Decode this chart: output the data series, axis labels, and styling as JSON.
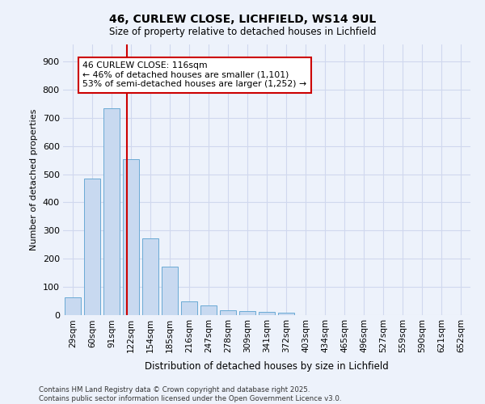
{
  "title_line1": "46, CURLEW CLOSE, LICHFIELD, WS14 9UL",
  "title_line2": "Size of property relative to detached houses in Lichfield",
  "xlabel": "Distribution of detached houses by size in Lichfield",
  "ylabel": "Number of detached properties",
  "categories": [
    "29sqm",
    "60sqm",
    "91sqm",
    "122sqm",
    "154sqm",
    "185sqm",
    "216sqm",
    "247sqm",
    "278sqm",
    "309sqm",
    "341sqm",
    "372sqm",
    "403sqm",
    "434sqm",
    "465sqm",
    "496sqm",
    "527sqm",
    "559sqm",
    "590sqm",
    "621sqm",
    "652sqm"
  ],
  "values": [
    62,
    483,
    733,
    553,
    272,
    173,
    48,
    33,
    18,
    13,
    11,
    8,
    0,
    0,
    0,
    0,
    0,
    0,
    0,
    0,
    0
  ],
  "bar_color": "#c8d9f0",
  "bar_edge_color": "#6aaad4",
  "annotation_title": "46 CURLEW CLOSE: 116sqm",
  "annotation_line2": "← 46% of detached houses are smaller (1,101)",
  "annotation_line3": "53% of semi-detached houses are larger (1,252) →",
  "vline_color": "#cc0000",
  "annotation_box_color": "#ffffff",
  "annotation_box_edge": "#cc0000",
  "ylim": [
    0,
    960
  ],
  "yticks": [
    0,
    100,
    200,
    300,
    400,
    500,
    600,
    700,
    800,
    900
  ],
  "bg_color": "#edf2fb",
  "grid_color": "#d0d8ee",
  "footer_line1": "Contains HM Land Registry data © Crown copyright and database right 2025.",
  "footer_line2": "Contains public sector information licensed under the Open Government Licence v3.0."
}
